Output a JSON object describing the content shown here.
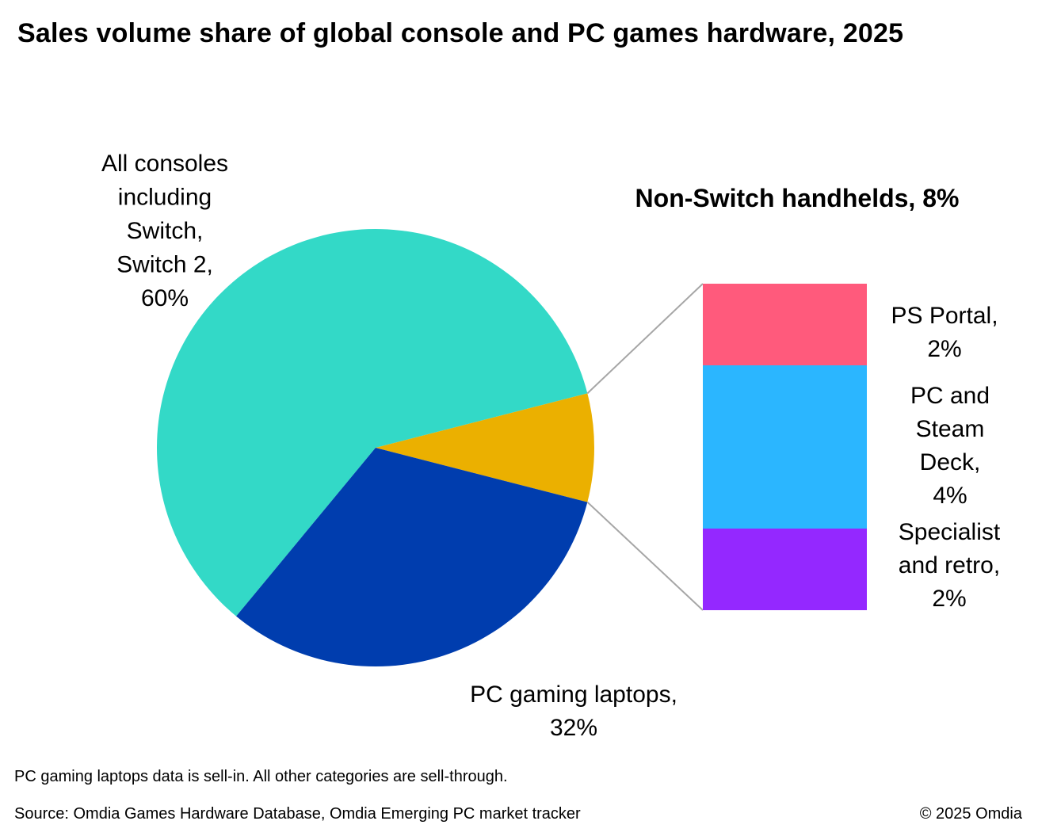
{
  "title": "Sales volume share of global console and PC games hardware, 2025",
  "chart_data": [
    {
      "type": "pie",
      "slices": [
        {
          "name": "All consoles including Switch, Switch 2",
          "value": 60,
          "label_lines": [
            "All consoles",
            "including",
            "Switch,",
            "Switch 2,",
            "60%"
          ],
          "color": "#33D9C7"
        },
        {
          "name": "Non-Switch handhelds",
          "value": 8,
          "label_lines": [],
          "color": "#EBB000"
        },
        {
          "name": "PC gaming laptops",
          "value": 32,
          "label_lines": [
            "PC gaming laptops,",
            "32%"
          ],
          "color": "#003DAE"
        }
      ],
      "unit": "%"
    },
    {
      "type": "bar",
      "stacked": true,
      "title": "Non-Switch handhelds, 8%",
      "segments": [
        {
          "name": "PS Portal",
          "value": 2,
          "label_lines": [
            "PS Portal,",
            "2%"
          ],
          "color": "#FF5A7C"
        },
        {
          "name": "PC and Steam Deck",
          "value": 4,
          "label_lines": [
            "PC and",
            "Steam",
            "Deck,",
            "4%"
          ],
          "color": "#2BB6FF"
        },
        {
          "name": "Specialist and retro",
          "value": 2,
          "label_lines": [
            "Specialist",
            "and retro,",
            "2%"
          ],
          "color": "#9428FF"
        }
      ],
      "total": 8,
      "unit": "%"
    }
  ],
  "footer": {
    "note": "PC gaming laptops data is sell-in. All other categories are sell-through.",
    "source": "Source: Omdia Games Hardware Database, Omdia Emerging PC market tracker",
    "copyright": "© 2025 Omdia"
  }
}
